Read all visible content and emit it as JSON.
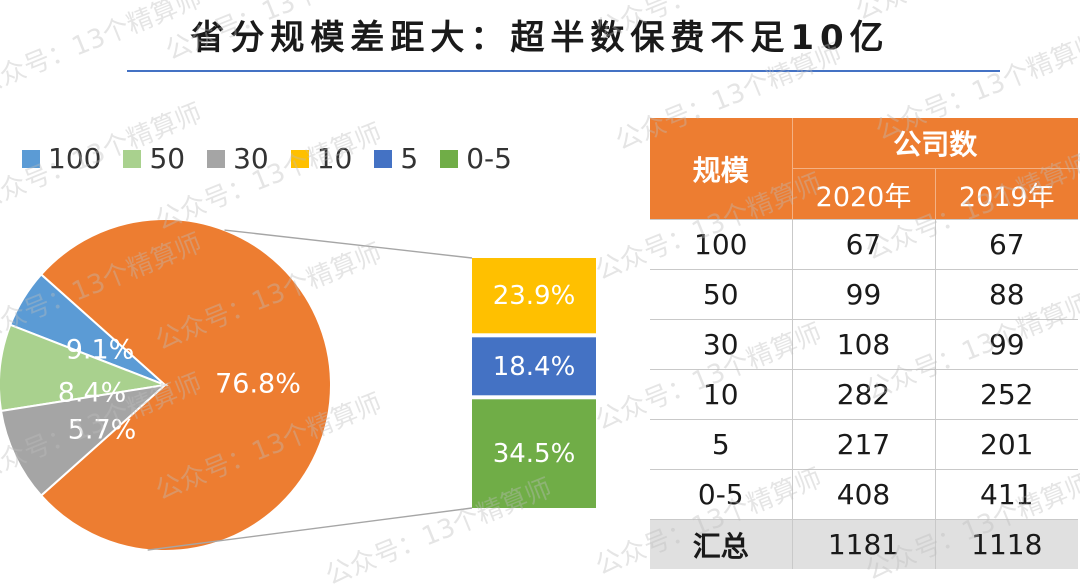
{
  "title": "省分规模差距大：超半数保费不足10亿",
  "watermark_text": "公众号：13个精算师",
  "colors": {
    "orange": "#ed7d31",
    "blue_light": "#5b9bd5",
    "green_light": "#a9d18e",
    "gray": "#a5a5a5",
    "gold": "#ffc000",
    "blue_dark": "#4472c4",
    "green_dark": "#70ad47",
    "rule": "#4472c4"
  },
  "chart_data": [
    {
      "type": "pie",
      "subtype": "bar-of-pie",
      "title": "",
      "legend": {
        "placement": "top-left",
        "entries": [
          {
            "label": "100",
            "color": "#5b9bd5"
          },
          {
            "label": "50",
            "color": "#a9d18e"
          },
          {
            "label": "30",
            "color": "#a5a5a5"
          },
          {
            "label": "10",
            "color": "#ffc000"
          },
          {
            "label": "5",
            "color": "#4472c4"
          },
          {
            "label": "0-5",
            "color": "#70ad47"
          }
        ]
      },
      "slices": [
        {
          "category": "100",
          "value": 5.7,
          "label": "5.7%",
          "color": "#5b9bd5"
        },
        {
          "category": "50",
          "value": 8.4,
          "label": "8.4%",
          "color": "#a9d18e"
        },
        {
          "category": "30",
          "value": 9.1,
          "label": "9.1%",
          "color": "#a5a5a5"
        },
        {
          "category": "",
          "value": 76.8,
          "label": "76.8%",
          "color": "#ed7d31"
        }
      ],
      "breakout_bar": [
        {
          "category": "10",
          "value": 23.9,
          "label": "23.9%",
          "color": "#ffc000"
        },
        {
          "category": "5",
          "value": 18.4,
          "label": "18.4%",
          "color": "#4472c4"
        },
        {
          "category": "0-5",
          "value": 34.5,
          "label": "34.5%",
          "color": "#70ad47"
        }
      ]
    },
    {
      "type": "table",
      "header": {
        "scale": "规模",
        "company_count": "公司数",
        "years": [
          "2020年",
          "2019年"
        ]
      },
      "rows": [
        {
          "scale": "100",
          "y2020": "67",
          "y2019": "67"
        },
        {
          "scale": "50",
          "y2020": "99",
          "y2019": "88"
        },
        {
          "scale": "30",
          "y2020": "108",
          "y2019": "99"
        },
        {
          "scale": "10",
          "y2020": "282",
          "y2019": "252"
        },
        {
          "scale": "5",
          "y2020": "217",
          "y2019": "201"
        },
        {
          "scale": "0-5",
          "y2020": "408",
          "y2019": "411"
        }
      ],
      "total": {
        "scale": "汇总",
        "y2020": "1181",
        "y2019": "1118"
      }
    }
  ]
}
